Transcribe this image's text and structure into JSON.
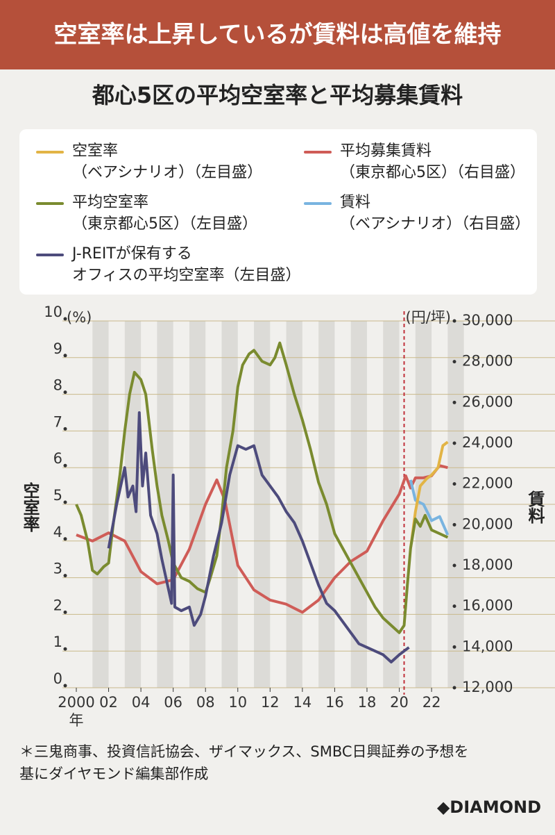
{
  "chart_data": {
    "type": "line",
    "header": "空室率は上昇しているが賃料は高値を維持",
    "title": "都心5区の平均空室率と平均募集賃料",
    "y_unit": "(%)",
    "y2_unit": "(円/坪)",
    "x_unit": "年",
    "ylabel": "空室率",
    "y2label": "賃料",
    "xlim": [
      2000,
      2023.5
    ],
    "xticks": [
      {
        "value": 2000,
        "label": "2000"
      },
      {
        "value": 2002,
        "label": "02"
      },
      {
        "value": 2004,
        "label": "04"
      },
      {
        "value": 2006,
        "label": "06"
      },
      {
        "value": 2008,
        "label": "08"
      },
      {
        "value": 2010,
        "label": "10"
      },
      {
        "value": 2012,
        "label": "12"
      },
      {
        "value": 2014,
        "label": "14"
      },
      {
        "value": 2016,
        "label": "16"
      },
      {
        "value": 2018,
        "label": "18"
      },
      {
        "value": 2020,
        "label": "20"
      },
      {
        "value": 2022,
        "label": "22"
      }
    ],
    "ylim": [
      0,
      10
    ],
    "yticks": [
      0,
      1,
      2,
      3,
      4,
      5,
      6,
      7,
      8,
      9,
      10
    ],
    "y2lim": [
      12000,
      30000
    ],
    "y2ticks": [
      {
        "value": 12000,
        "label": "12,000"
      },
      {
        "value": 14000,
        "label": "14,000"
      },
      {
        "value": 16000,
        "label": "16,000"
      },
      {
        "value": 18000,
        "label": "18,000"
      },
      {
        "value": 20000,
        "label": "20,000"
      },
      {
        "value": 22000,
        "label": "22,000"
      },
      {
        "value": 24000,
        "label": "24,000"
      },
      {
        "value": 26000,
        "label": "26,000"
      },
      {
        "value": 28000,
        "label": "28,000"
      },
      {
        "value": 30000,
        "label": "30,000"
      }
    ],
    "forecast_line_x": 2020.3,
    "series": [
      {
        "name": "空室率\n（ベアシナリオ）（左目盛）",
        "color": "#e2b445",
        "x": [
          2020.7,
          2021.0,
          2021.3,
          2021.7,
          2022.0,
          2022.4,
          2022.7,
          2023.0
        ],
        "values": [
          3.8,
          4.8,
          5.5,
          5.7,
          5.8,
          6.0,
          6.6,
          6.7
        ]
      },
      {
        "name": "平均募集賃料\n（東京都心5区）（右目盛）",
        "color": "#cf5c57",
        "axis": "y2",
        "x": [
          2000,
          2001,
          2002,
          2003,
          2004,
          2005,
          2006,
          2007,
          2008,
          2008.7,
          2009.2,
          2010,
          2011,
          2012,
          2013,
          2014,
          2015,
          2016,
          2017,
          2018,
          2019,
          2020,
          2020.4,
          2020.7,
          2021.0,
          2021.5,
          2022.0,
          2022.5,
          2023.0
        ],
        "values": [
          19500,
          19200,
          19600,
          19200,
          17700,
          17100,
          17300,
          18800,
          21000,
          22200,
          21200,
          18000,
          16800,
          16300,
          16100,
          15700,
          16300,
          17400,
          18200,
          18700,
          20200,
          21500,
          22400,
          21800,
          22300,
          22300,
          22400,
          22900,
          22800
        ]
      },
      {
        "name": "平均空室率\n（東京都心5区）（左目盛）",
        "color": "#7a8b2f",
        "x": [
          2000,
          2000.3,
          2000.7,
          2001.0,
          2001.3,
          2001.7,
          2002.0,
          2002.3,
          2002.7,
          2003.0,
          2003.3,
          2003.6,
          2004.0,
          2004.3,
          2004.7,
          2005.0,
          2005.3,
          2005.7,
          2006.0,
          2006.5,
          2007.0,
          2007.5,
          2008.0,
          2008.3,
          2008.7,
          2009.0,
          2009.3,
          2009.7,
          2010.0,
          2010.3,
          2010.7,
          2011.0,
          2011.5,
          2012.0,
          2012.3,
          2012.6,
          2013.0,
          2013.5,
          2014.0,
          2014.5,
          2015.0,
          2015.5,
          2016.0,
          2016.5,
          2017.0,
          2017.5,
          2018.0,
          2018.5,
          2019.0,
          2019.5,
          2020.0,
          2020.3,
          2020.5,
          2020.7,
          2021.0,
          2021.3,
          2021.6,
          2022.0,
          2022.5,
          2023.0
        ],
        "values": [
          5.0,
          4.7,
          4.0,
          3.2,
          3.1,
          3.3,
          3.4,
          4.5,
          5.8,
          7.0,
          8.0,
          8.6,
          8.4,
          8.0,
          6.5,
          5.5,
          4.7,
          4.0,
          3.4,
          3.0,
          2.9,
          2.7,
          2.6,
          3.0,
          3.6,
          4.7,
          6.0,
          7.0,
          8.2,
          8.8,
          9.1,
          9.2,
          8.9,
          8.8,
          9.0,
          9.4,
          8.8,
          8.0,
          7.3,
          6.5,
          5.6,
          5.0,
          4.2,
          3.8,
          3.4,
          3.0,
          2.6,
          2.2,
          1.9,
          1.7,
          1.5,
          1.7,
          2.8,
          3.8,
          4.6,
          4.4,
          4.7,
          4.3,
          4.2,
          4.1
        ]
      },
      {
        "name": "賃料\n（ベアシナリオ）（右目盛）",
        "color": "#79b4e0",
        "axis": "y2",
        "x": [
          2020.7,
          2021.0,
          2021.5,
          2022.0,
          2022.5,
          2023.0
        ],
        "values": [
          22200,
          21200,
          21000,
          20200,
          20400,
          19500
        ]
      },
      {
        "name": "J-REITが保有する\nオフィスの平均空室率（左目盛）",
        "color": "#4d4b7c",
        "x": [
          2002.0,
          2002.5,
          2003.0,
          2003.2,
          2003.5,
          2003.7,
          2003.9,
          2004.1,
          2004.3,
          2004.6,
          2005.0,
          2005.3,
          2005.7,
          2005.9,
          2006.0,
          2006.1,
          2006.5,
          2007.0,
          2007.3,
          2007.7,
          2008.0,
          2008.5,
          2009.0,
          2009.5,
          2010.0,
          2010.5,
          2011.0,
          2011.5,
          2012.0,
          2012.5,
          2013.0,
          2013.5,
          2014.0,
          2014.5,
          2015.0,
          2015.5,
          2016.0,
          2016.5,
          2017.0,
          2017.5,
          2018.0,
          2018.5,
          2019.0,
          2019.5,
          2020.0,
          2020.3,
          2020.6
        ],
        "values": [
          3.8,
          5.0,
          6.0,
          5.2,
          5.5,
          4.8,
          7.5,
          5.5,
          6.4,
          4.7,
          4.2,
          3.5,
          2.7,
          2.3,
          5.8,
          2.2,
          2.1,
          2.2,
          1.7,
          2.0,
          2.5,
          3.6,
          4.5,
          5.8,
          6.6,
          6.5,
          6.6,
          5.8,
          5.5,
          5.2,
          4.8,
          4.5,
          4.0,
          3.4,
          2.8,
          2.3,
          2.1,
          1.8,
          1.5,
          1.2,
          1.1,
          1.0,
          0.9,
          0.7,
          0.9,
          1.0,
          1.1
        ]
      }
    ],
    "note": "＊三鬼商事、投資信託協会、ザイマックス、SMBC日興証券の予想を\n基にダイヤモンド編集部作成",
    "brand": "◆DIAMOND"
  }
}
